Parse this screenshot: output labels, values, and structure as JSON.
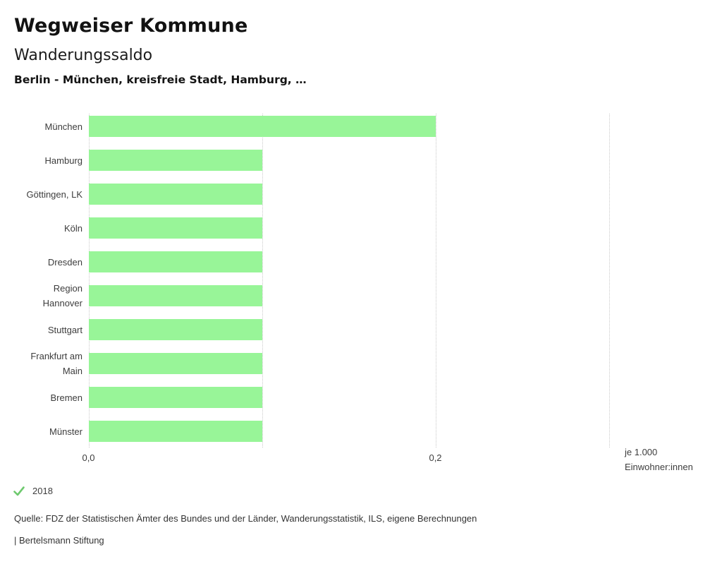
{
  "header": {
    "title": "Wegweiser Kommune",
    "subtitle": "Wanderungssaldo",
    "filter_line": "Berlin - München, kreisfreie Stadt, Hamburg, …"
  },
  "chart_data": {
    "type": "bar",
    "orientation": "horizontal",
    "title": "Wanderungssaldo",
    "categories": [
      "München",
      "Hamburg",
      "Göttingen, LK",
      "Köln",
      "Dresden",
      "Region\nHannover",
      "Stuttgart",
      "Frankfurt am\nMain",
      "Bremen",
      "Münster"
    ],
    "values": [
      0.2,
      0.1,
      0.1,
      0.1,
      0.1,
      0.1,
      0.1,
      0.1,
      0.1,
      0.1
    ],
    "xlim": [
      0,
      0.3
    ],
    "gridline_values": [
      0,
      0.1,
      0.2,
      0.3
    ],
    "x_ticks": [
      {
        "value": 0,
        "label": "0,0"
      },
      {
        "value": 0.2,
        "label": "0,2"
      }
    ],
    "unit_line1": "je 1.000",
    "unit_line2": "Einwohner:innen",
    "xlabel": "je 1.000 Einwohner:innen",
    "ylabel": "",
    "bar_color": "#98f598",
    "grid": "vertical-dotted",
    "legend_position": "bottom-left"
  },
  "footer": {
    "year": "2018",
    "check_color": "#6ec96e",
    "check_icon": "check-mark",
    "source": "Quelle: FDZ der Statistischen Ämter des Bundes und der Länder, Wanderungsstatistik, ILS, eigene Berechnungen",
    "attribution": "| Bertelsmann Stiftung"
  }
}
